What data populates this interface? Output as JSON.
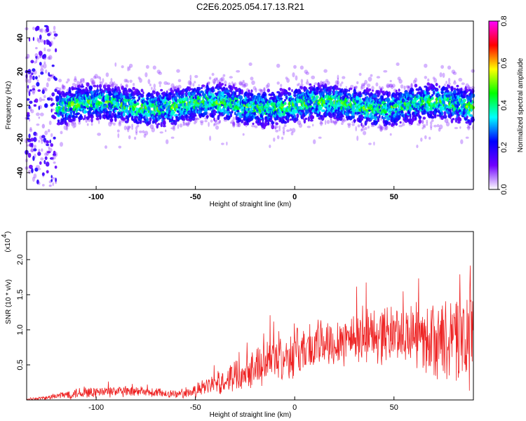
{
  "title": "C2E6.2025.054.17.13.R21",
  "chart_data": [
    {
      "type": "heatmap",
      "xlabel": "Height of straight line (km)",
      "ylabel": "Frequency (Hz)",
      "xlim": [
        -135,
        90
      ],
      "ylim": [
        -50,
        50
      ],
      "x_ticks": [
        -100,
        -50,
        0,
        50
      ],
      "y_ticks": [
        -40,
        -20,
        0,
        20,
        40
      ],
      "x_tick_labels": [
        "-100",
        "-50",
        "0",
        "50"
      ],
      "y_tick_labels": [
        "-40",
        "-20",
        "0",
        "20",
        "40"
      ],
      "colorbar": {
        "label": "Normalized spectral amplitude",
        "range": [
          0.0,
          0.8
        ],
        "ticks": [
          0.0,
          0.2,
          0.4,
          0.6,
          0.8
        ],
        "tick_labels": [
          "0.0",
          "0.2",
          "0.4",
          "0.6",
          "0.8"
        ],
        "colormap": [
          "#ffffff",
          "#7000ff",
          "#0000ff",
          "#00ffff",
          "#00ff00",
          "#ffff00",
          "#ff0000",
          "#ff00ff"
        ]
      },
      "band": {
        "x_start": -120,
        "x_end": 90,
        "center_hz": 0,
        "half_width_hz": 6,
        "noisy_region_x": [
          -135,
          -120
        ]
      },
      "grid": false,
      "legend": "none"
    },
    {
      "type": "line",
      "xlabel": "Height of straight line (km)",
      "ylabel": "SNR (10 * v/v)",
      "y_multiplier_label": "(x10",
      "y_multiplier_exp": "4",
      "xlim": [
        -135,
        90
      ],
      "ylim": [
        0,
        2.4
      ],
      "x_ticks": [
        -100,
        -50,
        0,
        50
      ],
      "y_ticks": [
        0.5,
        1.0,
        1.5,
        2.0
      ],
      "x_tick_labels": [
        "-100",
        "-50",
        "0",
        "50"
      ],
      "y_tick_labels": [
        "0.5",
        "1.0",
        "1.5",
        "2.0"
      ],
      "line_color": "#ee2222",
      "envelope": {
        "x": [
          -135,
          -125,
          -110,
          -90,
          -70,
          -55,
          -45,
          -35,
          -25,
          -15,
          -5,
          5,
          20,
          35,
          50,
          60,
          70,
          80,
          88
        ],
        "mean": [
          0.01,
          0.03,
          0.1,
          0.12,
          0.1,
          0.08,
          0.18,
          0.28,
          0.42,
          0.55,
          0.62,
          0.72,
          0.85,
          0.92,
          0.95,
          0.92,
          0.85,
          0.8,
          0.95
        ],
        "spread": [
          0.01,
          0.03,
          0.08,
          0.08,
          0.07,
          0.06,
          0.12,
          0.18,
          0.25,
          0.3,
          0.32,
          0.35,
          0.35,
          0.4,
          0.4,
          0.42,
          0.5,
          0.6,
          0.8
        ]
      },
      "grid": false,
      "legend": "none"
    }
  ]
}
